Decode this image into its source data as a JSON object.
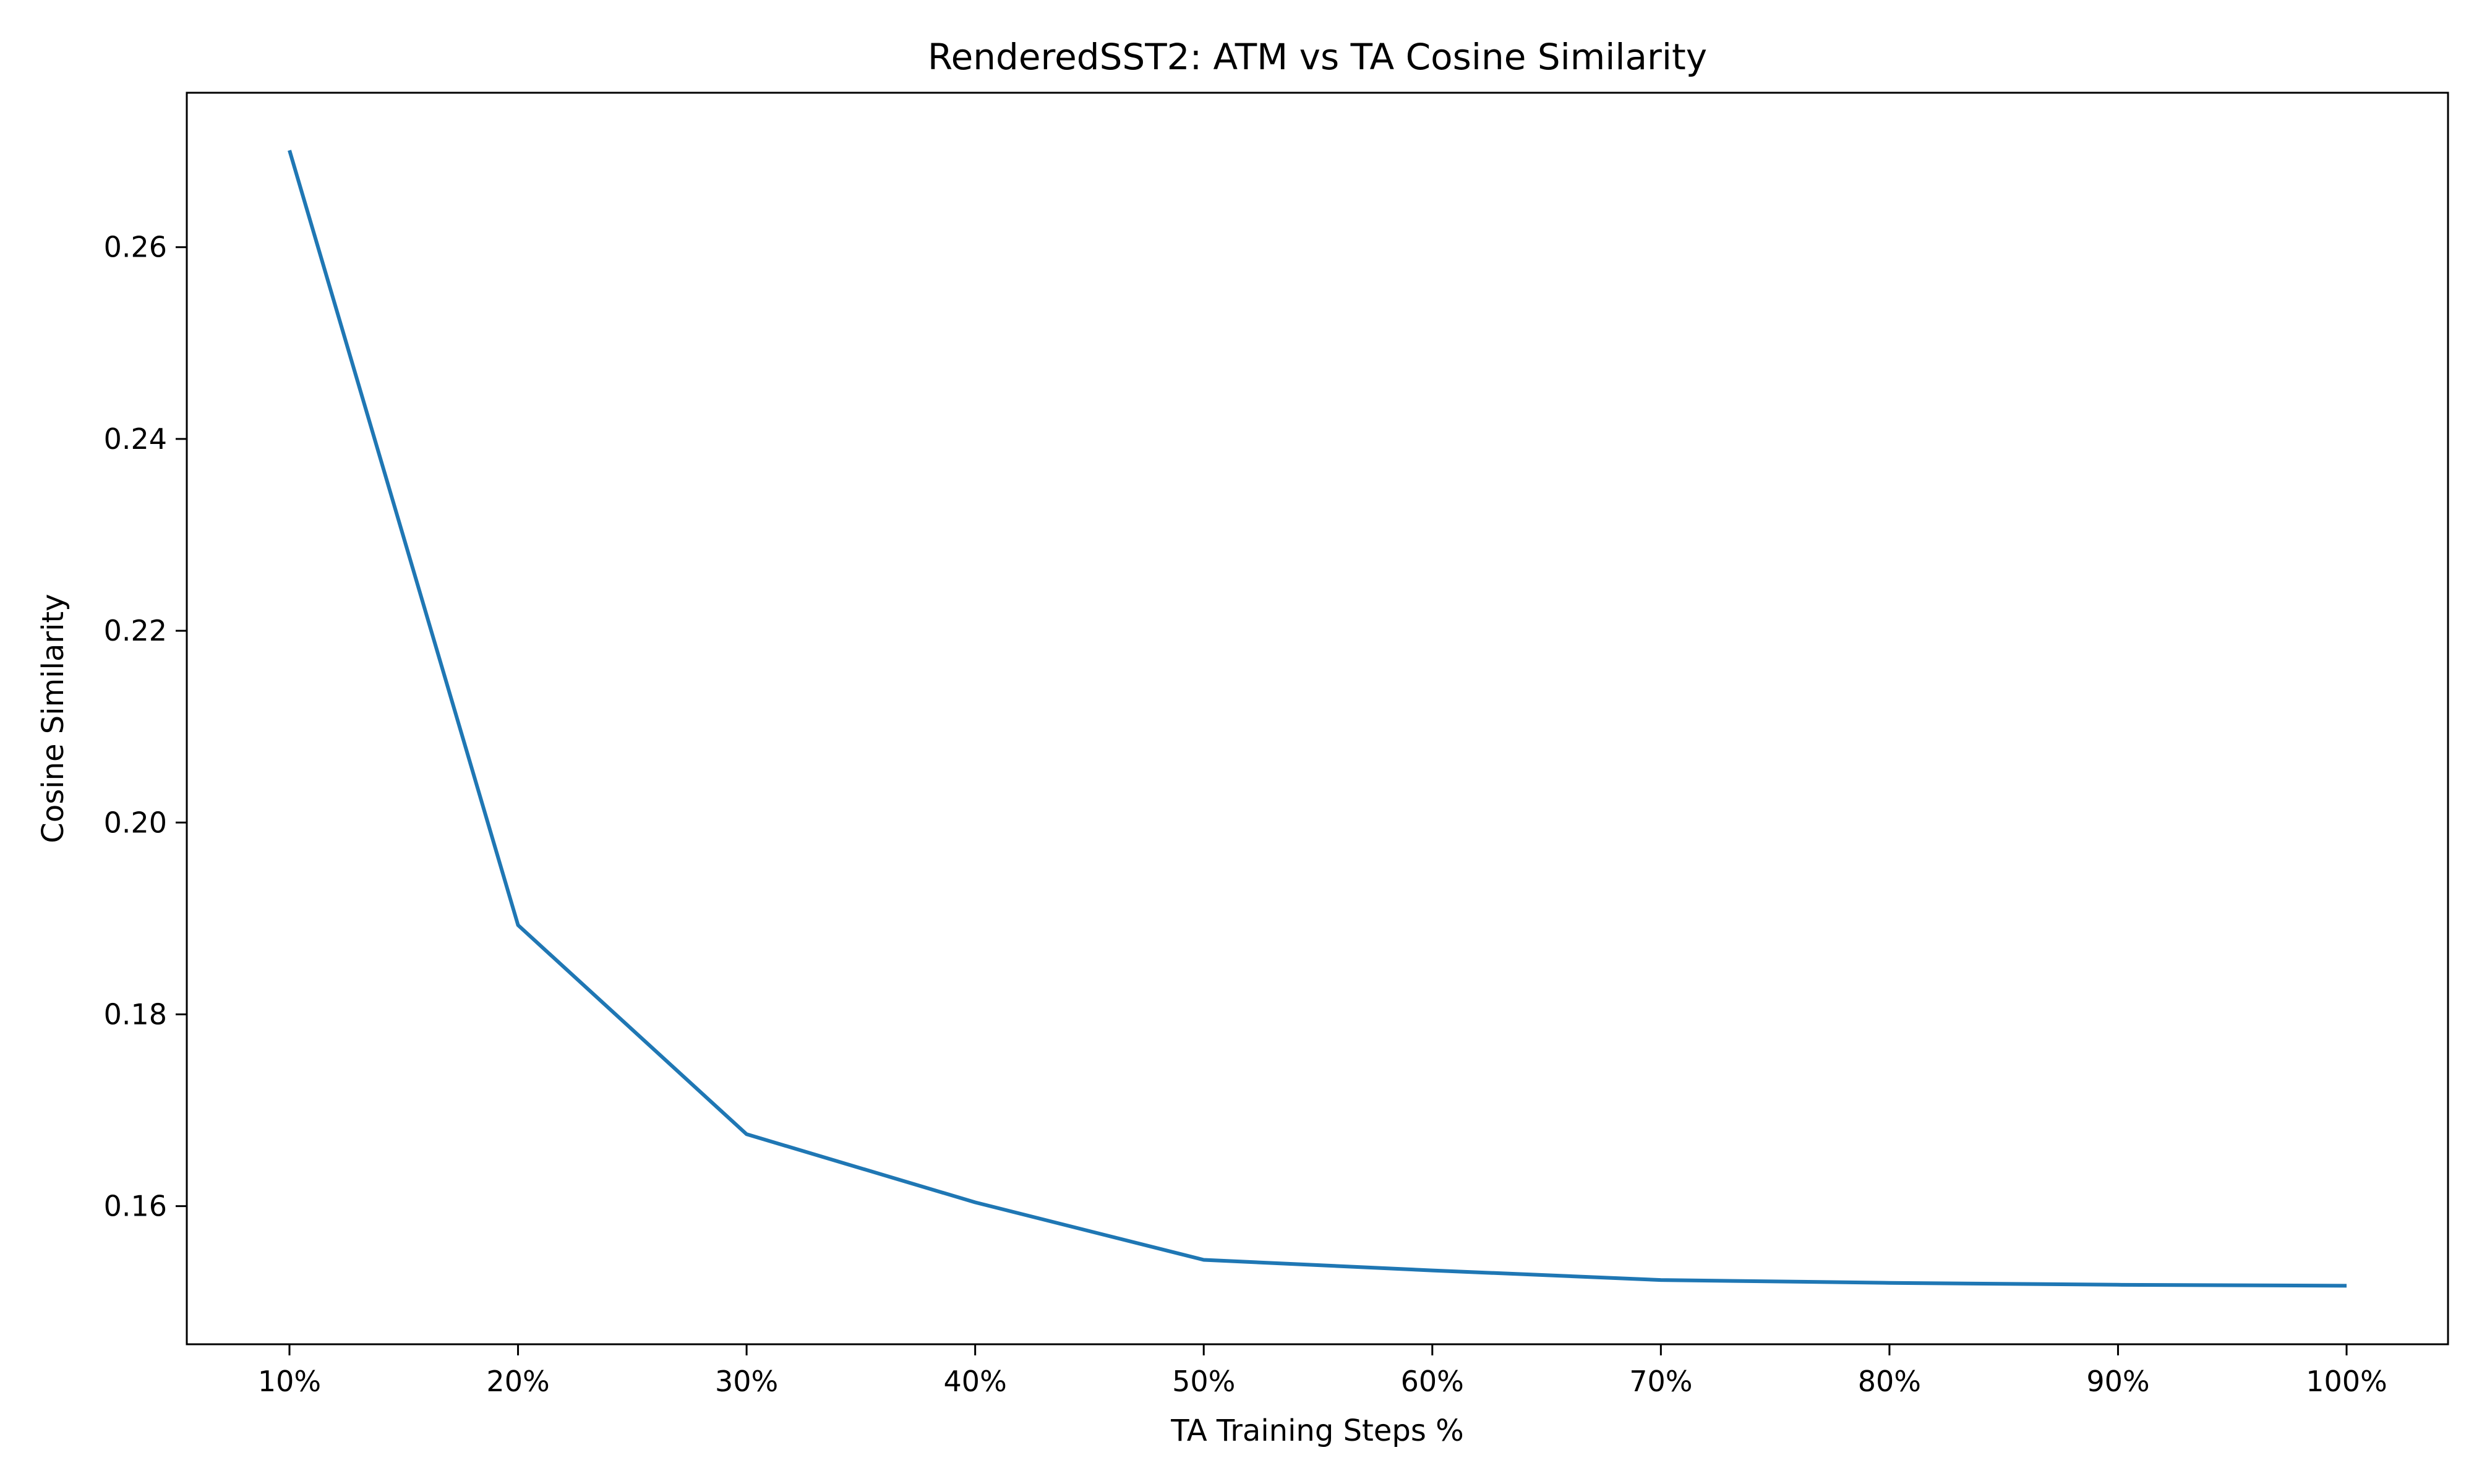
{
  "chart_data": {
    "type": "line",
    "title": "RenderedSST2: ATM vs TA Cosine Similarity",
    "xlabel": "TA Training Steps %",
    "ylabel": "Cosine Similarity",
    "categories": [
      "10%",
      "20%",
      "30%",
      "40%",
      "50%",
      "60%",
      "70%",
      "80%",
      "90%",
      "100%"
    ],
    "series": [
      {
        "values": [
          0.2701,
          0.1893,
          0.1675,
          0.1604,
          0.1544,
          0.1533,
          0.1523,
          0.152,
          0.1518,
          0.1517
        ],
        "color": "#1f77b4"
      }
    ],
    "yticks": [
      0.16,
      0.18,
      0.2,
      0.22,
      0.24,
      0.26
    ],
    "ytick_labels": [
      "0.16",
      "0.18",
      "0.20",
      "0.22",
      "0.24",
      "0.26"
    ],
    "ylim": [
      0.1456,
      0.2761
    ],
    "grid": false,
    "legend": "none"
  }
}
